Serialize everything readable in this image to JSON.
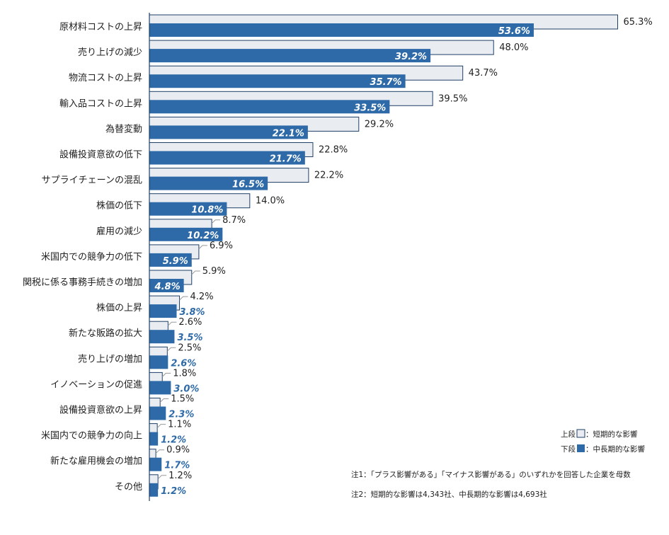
{
  "chart_data": {
    "type": "bar",
    "orientation": "horizontal",
    "categories": [
      "原材料コストの上昇",
      "売り上げの減少",
      "物流コストの上昇",
      "輸入品コストの上昇",
      "為替変動",
      "設備投資意欲の低下",
      "サプライチェーンの混乱",
      "株価の低下",
      "雇用の減少",
      "米国内での競争力の低下",
      "関税に係る事務手続きの増加",
      "株価の上昇",
      "新たな販路の拡大",
      "売り上げの増加",
      "イノベーションの促進",
      "設備投資意欲の上昇",
      "米国内での競争力の向上",
      "新たな雇用機会の増加",
      "その他"
    ],
    "series": [
      {
        "name": "短期的な影響",
        "values": [
          65.3,
          48.0,
          43.7,
          39.5,
          29.2,
          22.8,
          22.2,
          14.0,
          8.7,
          6.9,
          5.9,
          4.2,
          2.6,
          2.5,
          1.8,
          1.5,
          1.1,
          0.9,
          1.2
        ],
        "labels": [
          "65.3%",
          "48.0%",
          "43.7%",
          "39.5%",
          "29.2%",
          "22.8%",
          "22.2%",
          "14.0%",
          "8.7%",
          "6.9%",
          "5.9%",
          "4.2%",
          "2.6%",
          "2.5%",
          "1.8%",
          "1.5%",
          "1.1%",
          "0.9%",
          "1.2%"
        ],
        "color": "#e9edf2",
        "edge": "#1f3f66"
      },
      {
        "name": "中長期的な影響",
        "values": [
          53.6,
          39.2,
          35.7,
          33.5,
          22.1,
          21.7,
          16.5,
          10.8,
          10.2,
          5.9,
          4.8,
          3.8,
          3.5,
          2.6,
          3.0,
          2.3,
          1.2,
          1.7,
          1.2
        ],
        "labels": [
          "53.6%",
          "39.2%",
          "35.7%",
          "33.5%",
          "22.1%",
          "21.7%",
          "16.5%",
          "10.8%",
          "10.2%",
          "5.9%",
          "4.8%",
          "3.8%",
          "3.5%",
          "2.6%",
          "3.0%",
          "2.3%",
          "1.2%",
          "1.7%",
          "1.2%"
        ],
        "color": "#2e6aa8"
      }
    ],
    "legend": {
      "position": "bottom-right",
      "rows": [
        {
          "prefix": "上段",
          "name": "：短期的な影響"
        },
        {
          "prefix": "下段",
          "name": "：中長期的な影響"
        }
      ]
    },
    "notes": [
      "注1：「プラス影響がある」「マイナス影響がある」のいずれかを回答した企業を母数",
      "注2：短期的な影響は4,343社、中長期的な影響は4,693社"
    ]
  }
}
